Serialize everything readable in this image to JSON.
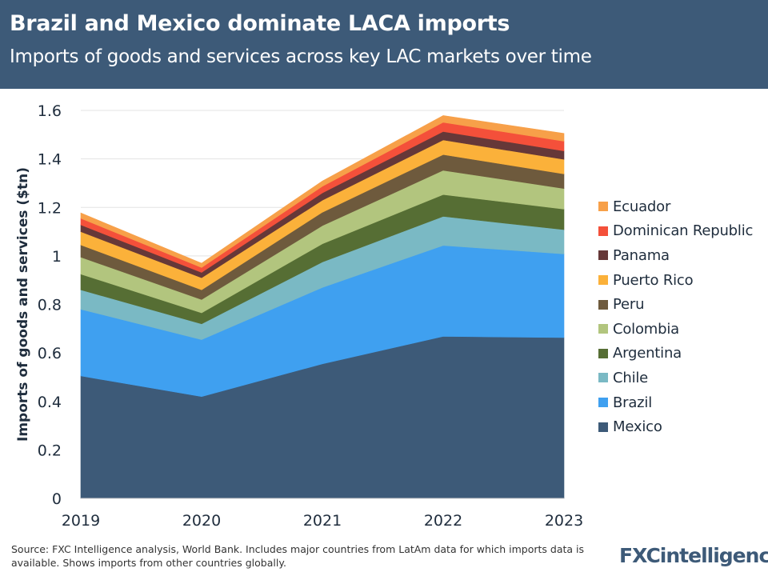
{
  "header": {
    "title": "Brazil and Mexico dominate LACA imports",
    "subtitle": "Imports of goods and services across key LAC markets over time"
  },
  "chart_data": {
    "type": "area",
    "stacked": true,
    "title": "Brazil and Mexico dominate LACA imports",
    "subtitle": "Imports of goods and services across key LAC markets over time",
    "xlabel": "",
    "ylabel": "Imports of goods and services ($tn)",
    "x": [
      "2019",
      "2020",
      "2021",
      "2022",
      "2023"
    ],
    "ylim": [
      0,
      1.6
    ],
    "yticks": [
      "0",
      "0.2",
      "0.4",
      "0.6",
      "0.8",
      "1",
      "1.2",
      "1.4",
      "1.6"
    ],
    "grid": true,
    "legend_position": "right",
    "series": [
      {
        "name": "Mexico",
        "color": "#3d5a78",
        "values": [
          0.505,
          0.42,
          0.555,
          0.668,
          0.663
        ]
      },
      {
        "name": "Brazil",
        "color": "#3fa0f0",
        "values": [
          0.275,
          0.235,
          0.315,
          0.375,
          0.345
        ]
      },
      {
        "name": "Chile",
        "color": "#7ab9c4",
        "values": [
          0.08,
          0.065,
          0.105,
          0.12,
          0.1
        ]
      },
      {
        "name": "Argentina",
        "color": "#566e34",
        "values": [
          0.065,
          0.045,
          0.075,
          0.09,
          0.085
        ]
      },
      {
        "name": "Colombia",
        "color": "#b2c57e",
        "values": [
          0.07,
          0.055,
          0.075,
          0.1,
          0.085
        ]
      },
      {
        "name": "Peru",
        "color": "#6e5a3d",
        "values": [
          0.05,
          0.04,
          0.055,
          0.065,
          0.06
        ]
      },
      {
        "name": "Puerto Rico",
        "color": "#fbb13a",
        "values": [
          0.055,
          0.05,
          0.05,
          0.06,
          0.06
        ]
      },
      {
        "name": "Panama",
        "color": "#663838",
        "values": [
          0.028,
          0.022,
          0.03,
          0.035,
          0.035
        ]
      },
      {
        "name": "Dominican Republic",
        "color": "#f4503a",
        "values": [
          0.027,
          0.02,
          0.027,
          0.038,
          0.04
        ]
      },
      {
        "name": "Ecuador",
        "color": "#f7a049",
        "values": [
          0.022,
          0.018,
          0.022,
          0.028,
          0.032
        ]
      }
    ]
  },
  "footer": {
    "source": "Source: FXC Intelligence analysis, World Bank. Includes major countries from LatAm data for which imports data is available. Shows imports from other countries globally.",
    "logo": "FXCintelligence"
  }
}
